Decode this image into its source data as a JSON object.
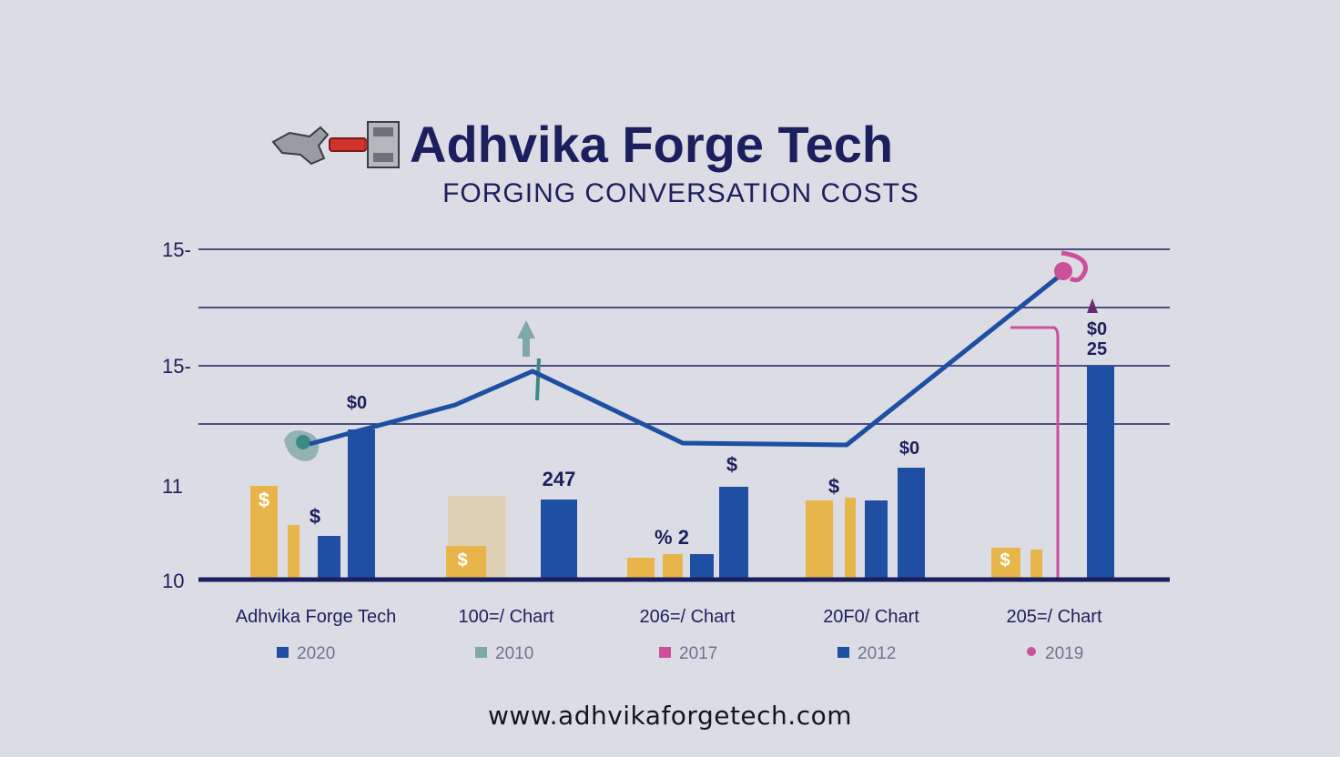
{
  "header": {
    "brand_name": "Adhvika Forge Tech",
    "subtitle": "FORGING CONVERSATION COSTS"
  },
  "website": "www.adhvikaforgetech.com",
  "colors": {
    "navy": "#1b1f5e",
    "blue": "#1e4fa3",
    "gold": "#e8b54a",
    "teal": "#7fa8a8",
    "pink": "#cc4f9c",
    "background": "#dcdde4"
  },
  "icons": [
    "forge-machine-icon",
    "arrow-up-icon",
    "dollar-icon"
  ],
  "chart_data": {
    "type": "bar",
    "title": "",
    "y_ticks": [
      "15-",
      "15-",
      "11",
      "10"
    ],
    "categories": [
      "Adhvika Forge Tech",
      "100=/ Chart",
      "206=/ Chart",
      "20F0/ Chart",
      "205=/ Chart"
    ],
    "bar_annotations": [
      "$0",
      "$",
      "$",
      "247",
      "% 2",
      "$",
      "$",
      "$0",
      "$",
      "$0 25",
      "$"
    ],
    "legend": [
      {
        "label": "2020",
        "color": "#1e4fa3"
      },
      {
        "label": "2010",
        "color": "#7fa8a8"
      },
      {
        "label": "2017",
        "color": "#cc4f9c"
      },
      {
        "label": "2012",
        "color": "#1e4fa3"
      },
      {
        "label": "2019",
        "color": "#cc4f9c"
      }
    ],
    "grid": true,
    "legend_position": "bottom"
  }
}
